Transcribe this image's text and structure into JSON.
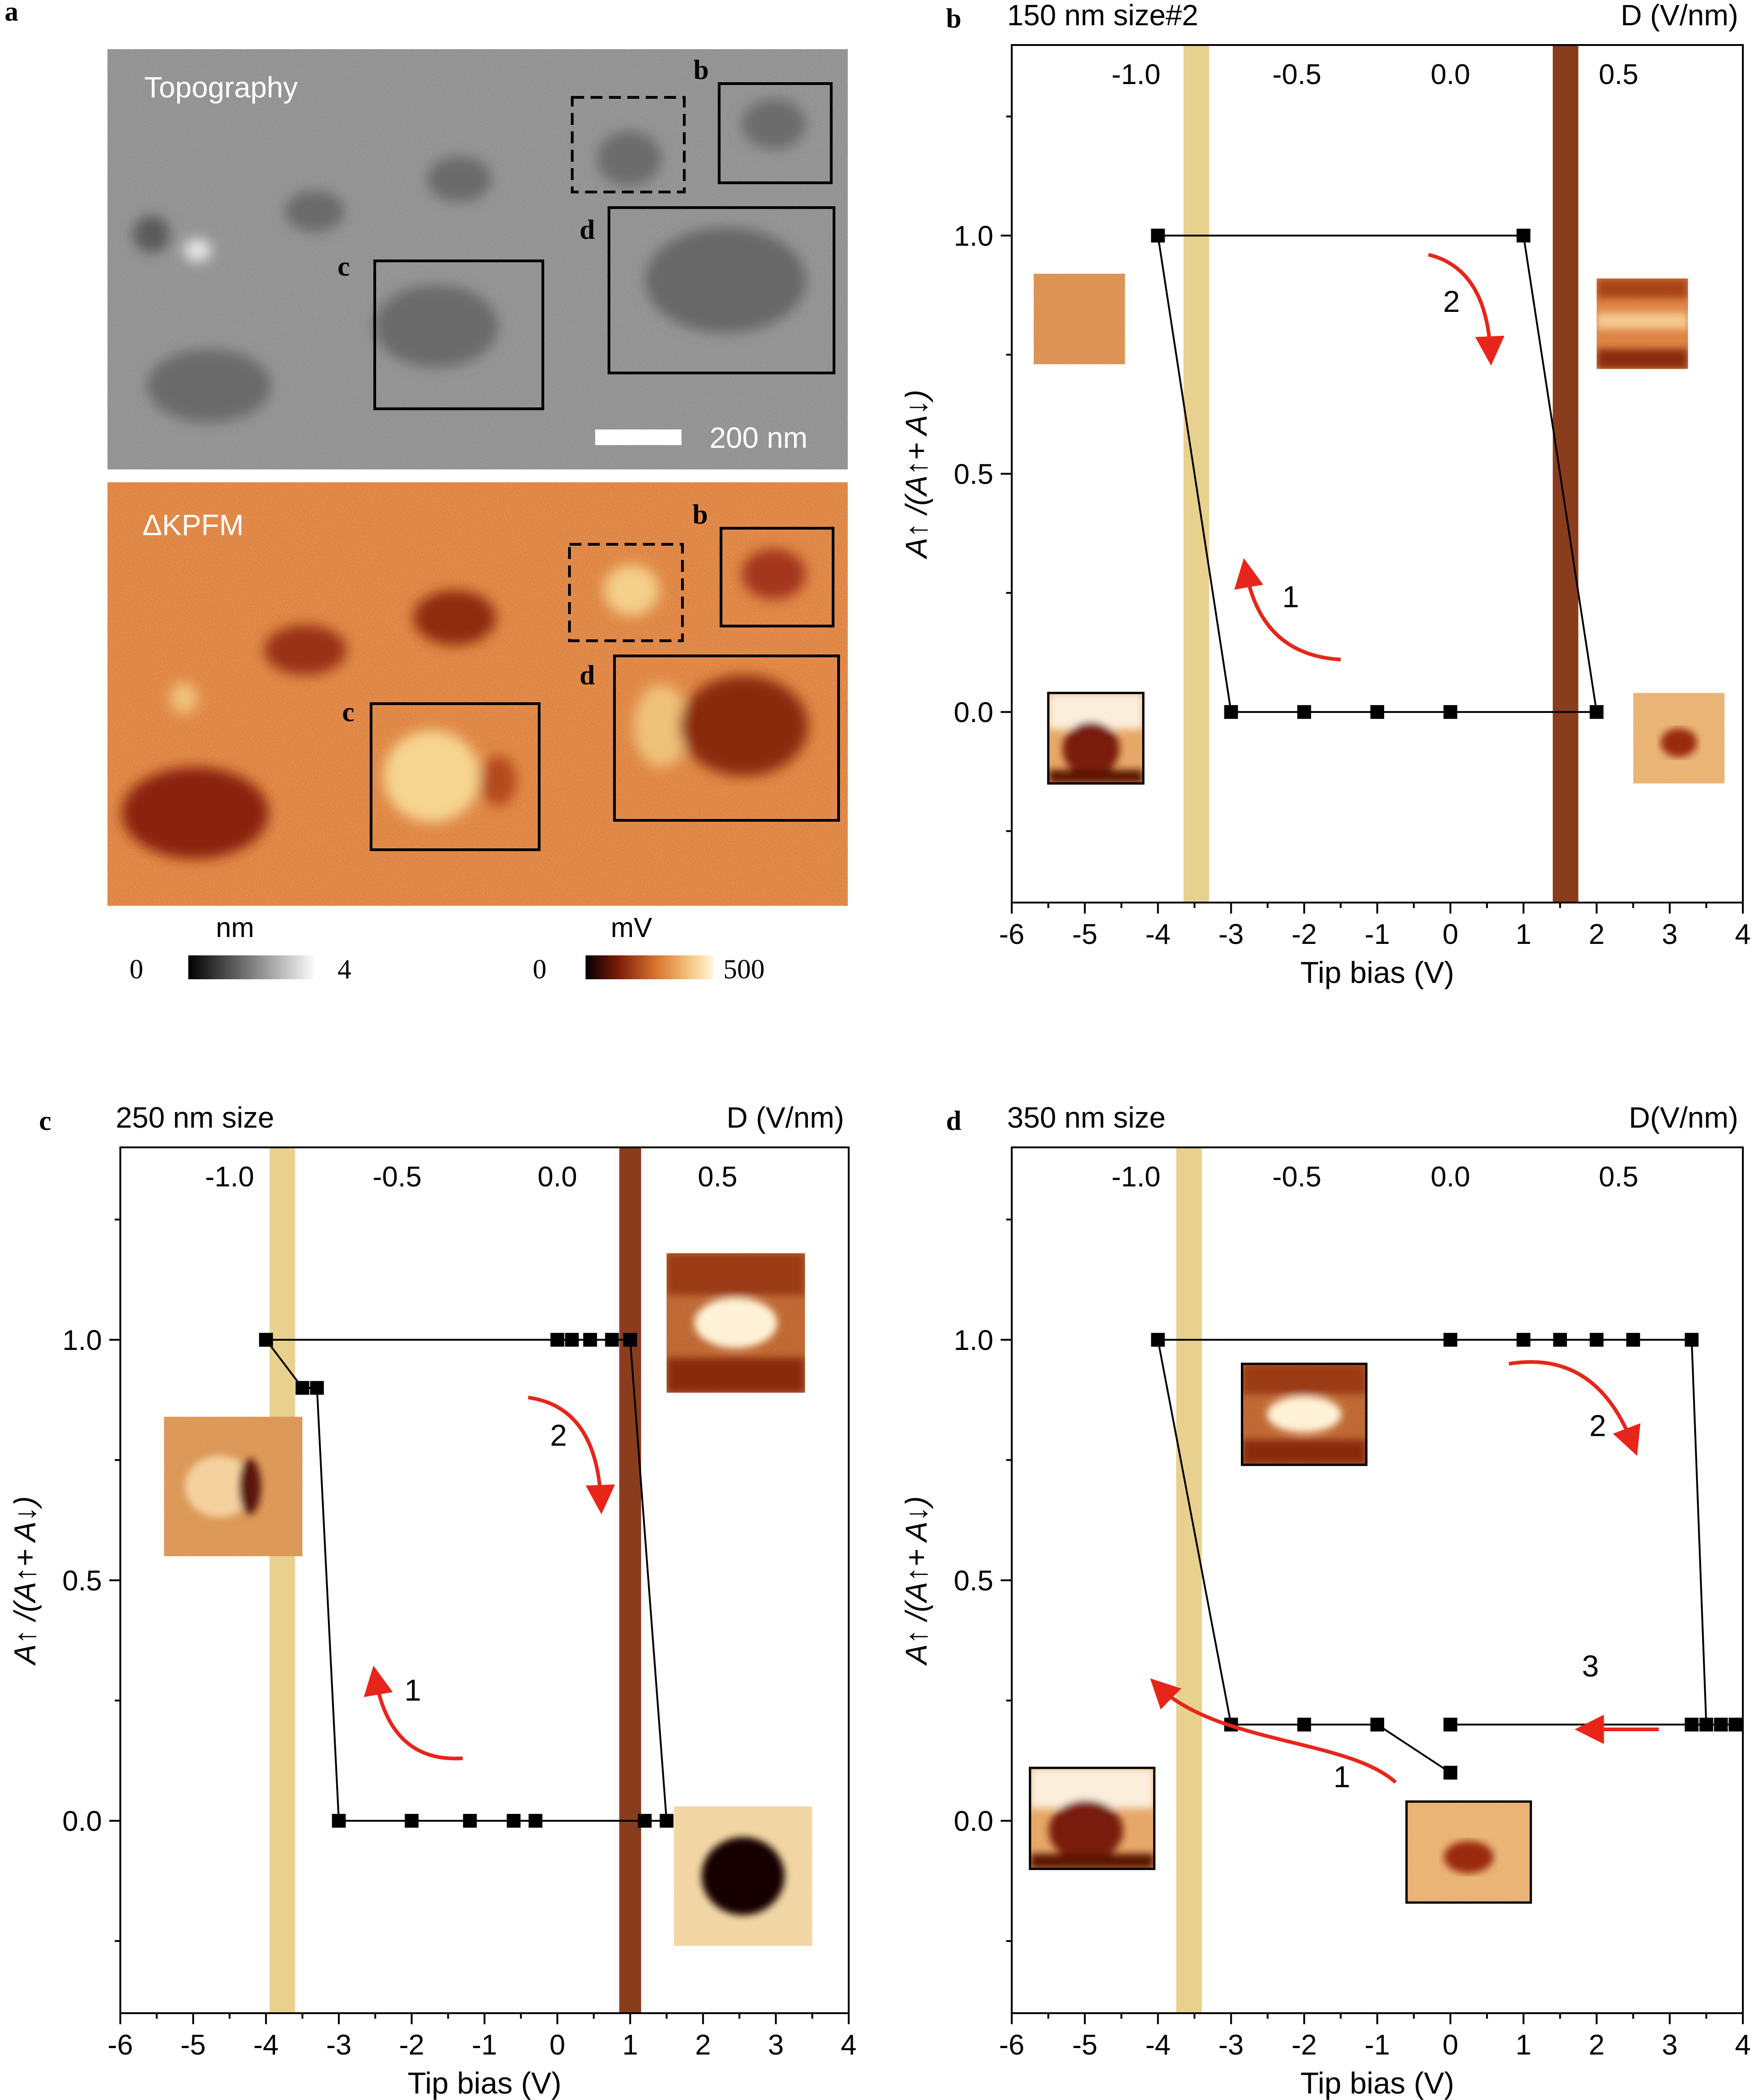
{
  "panel_a": {
    "letter": "a",
    "topography_label": "Topography",
    "kpfm_label": "ΔKPFM",
    "scalebar_label": "200 nm",
    "box_labels": [
      "b",
      "c",
      "d"
    ],
    "colorbar_topo": {
      "unit": "nm",
      "min": "0",
      "max": "4"
    },
    "colorbar_kpfm": {
      "unit": "mV",
      "min": "0",
      "max": "500"
    }
  },
  "colors": {
    "hysteresis_line": "#000000",
    "arrow": "#e8251a",
    "band_light": "#e8d08e",
    "band_dark": "#8a3d1c",
    "kpfm_background": "#d9732e"
  },
  "chart_data": [
    {
      "panel": "b",
      "type": "line",
      "title": "150 nm size#2",
      "top_axis_label": "D (V/nm)",
      "xlabel": "Tip bias (V)",
      "ylabel": "A↑ /(A↑+ A↓)",
      "xlim": [
        -6,
        4
      ],
      "ylim": [
        -0.4,
        1.4
      ],
      "x_ticks": [
        -6,
        -5,
        -4,
        -3,
        -2,
        -1,
        0,
        1,
        2,
        3,
        4
      ],
      "y_ticks": [
        0.0,
        0.5,
        1.0
      ],
      "top_ticks": [
        {
          "label": "-1.0",
          "x": -4.3
        },
        {
          "label": "-0.5",
          "x": -2.1
        },
        {
          "label": "0.0",
          "x": 0.0
        },
        {
          "label": "0.5",
          "x": 2.3
        }
      ],
      "bands": [
        {
          "color": "light",
          "x0": -3.65,
          "x1": -3.3
        },
        {
          "color": "dark",
          "x0": 1.4,
          "x1": 1.75
        }
      ],
      "series": [
        {
          "name": "hysteresis",
          "x": [
            -4,
            1,
            2,
            0,
            -1,
            -2,
            -3,
            -4
          ],
          "y": [
            1.0,
            1.0,
            0.0,
            0.0,
            0.0,
            0.0,
            0.0,
            1.0
          ]
        }
      ],
      "arrow_labels": [
        "1",
        "2"
      ]
    },
    {
      "panel": "c",
      "type": "line",
      "title": "250 nm size",
      "top_axis_label": "D (V/nm)",
      "xlabel": "Tip bias (V)",
      "ylabel": "A↑ /(A↑+ A↓)",
      "xlim": [
        -6,
        4
      ],
      "ylim": [
        -0.4,
        1.4
      ],
      "x_ticks": [
        -6,
        -5,
        -4,
        -3,
        -2,
        -1,
        0,
        1,
        2,
        3,
        4
      ],
      "y_ticks": [
        0.0,
        0.5,
        1.0
      ],
      "top_ticks": [
        {
          "label": "-1.0",
          "x": -4.5
        },
        {
          "label": "-0.5",
          "x": -2.2
        },
        {
          "label": "0.0",
          "x": 0.0
        },
        {
          "label": "0.5",
          "x": 2.2
        }
      ],
      "bands": [
        {
          "color": "light",
          "x0": -3.95,
          "x1": -3.6
        },
        {
          "color": "dark",
          "x0": 0.85,
          "x1": 1.15
        }
      ],
      "series": [
        {
          "name": "hysteresis",
          "x": [
            -4,
            -3.5,
            -3.3,
            -3,
            -2,
            -1.2,
            -0.6,
            -0.3,
            1.2,
            1.5,
            1.0,
            0.75,
            0.45,
            0.2,
            0.0,
            -4
          ],
          "y": [
            1.0,
            0.9,
            0.9,
            0.0,
            0.0,
            0.0,
            0.0,
            0.0,
            0.0,
            0.0,
            1.0,
            1.0,
            1.0,
            1.0,
            1.0,
            1.0
          ]
        }
      ],
      "arrow_labels": [
        "1",
        "2"
      ]
    },
    {
      "panel": "d",
      "type": "line",
      "title": "350 nm size",
      "top_axis_label": "D(V/nm)",
      "xlabel": "Tip bias (V)",
      "ylabel": "A↑ /(A↑+ A↓)",
      "xlim": [
        -6,
        4
      ],
      "ylim": [
        -0.4,
        1.4
      ],
      "x_ticks": [
        -6,
        -5,
        -4,
        -3,
        -2,
        -1,
        0,
        1,
        2,
        3,
        4
      ],
      "y_ticks": [
        0.0,
        0.5,
        1.0
      ],
      "top_ticks": [
        {
          "label": "-1.0",
          "x": -4.3
        },
        {
          "label": "-0.5",
          "x": -2.1
        },
        {
          "label": "0.0",
          "x": 0.0
        },
        {
          "label": "0.5",
          "x": 2.3
        }
      ],
      "bands": [
        {
          "color": "light",
          "x0": -3.75,
          "x1": -3.4
        }
      ],
      "series": [
        {
          "name": "hysteresis",
          "x": [
            0,
            -1,
            -2,
            -3,
            -4,
            0,
            1,
            1.5,
            2,
            2.5,
            3.3,
            3.5,
            3.7,
            3.9,
            3.3,
            0
          ],
          "y": [
            0.1,
            0.2,
            0.2,
            0.2,
            1.0,
            1.0,
            1.0,
            1.0,
            1.0,
            1.0,
            1.0,
            0.2,
            0.2,
            0.2,
            0.2,
            0.2
          ]
        }
      ],
      "arrow_labels": [
        "1",
        "2",
        "3"
      ]
    }
  ]
}
